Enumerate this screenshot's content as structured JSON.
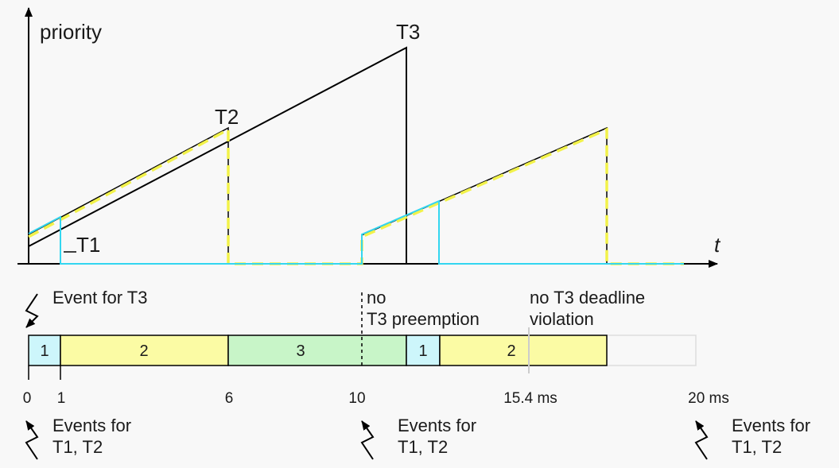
{
  "axis": {
    "y_label": "priority",
    "x_label": "t"
  },
  "task_labels": {
    "t1": "T1",
    "t2": "T2",
    "t3": "T3"
  },
  "annotations": {
    "event_t3": "Event for T3",
    "no_preemption_1": "no",
    "no_preemption_2": "T3 preemption",
    "no_violation_1": "no T3 deadline",
    "no_violation_2": "violation"
  },
  "timeline": {
    "segments": [
      {
        "label": "1",
        "task": "T1",
        "start": 0,
        "end": 1
      },
      {
        "label": "2",
        "task": "T2",
        "start": 1,
        "end": 6
      },
      {
        "label": "3",
        "task": "T3",
        "start": 6,
        "end": 11.5
      },
      {
        "label": "1",
        "task": "T1",
        "start": 11.5,
        "end": 12.5
      },
      {
        "label": "2",
        "task": "T2",
        "start": 12.5,
        "end": 17
      }
    ],
    "ticks": [
      "0",
      "1",
      "6",
      "10",
      "15.4 ms",
      "20 ms"
    ]
  },
  "events": [
    {
      "line1": "Events for",
      "line2": "T1, T2"
    },
    {
      "line1": "Events for",
      "line2": "T1, T2"
    },
    {
      "line1": "Events for",
      "line2": "T1, T2"
    }
  ],
  "colors": {
    "t1": "#cdf6fb",
    "t2": "#fbfba4",
    "t3": "#c8f5c8",
    "cyan_line": "#33d6f0",
    "yellow_line": "#f2f24a",
    "axis": "#000000"
  }
}
